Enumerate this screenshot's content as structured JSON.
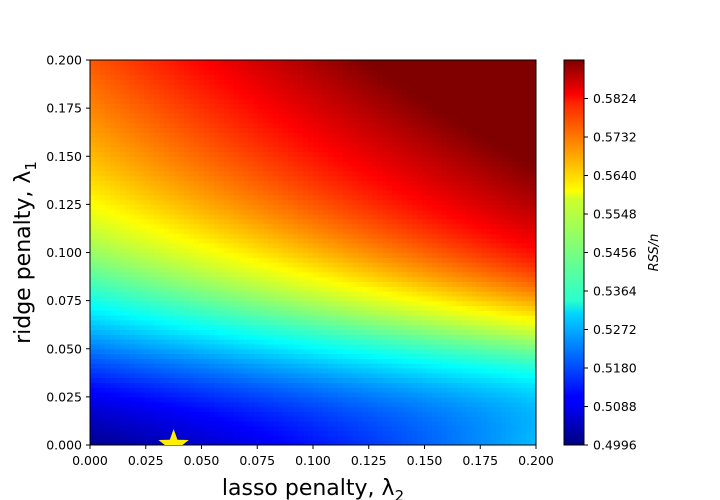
{
  "chart_data": {
    "type": "heatmap",
    "title": "",
    "xlabel": "lasso penalty, λ",
    "xlabel_sub": "2",
    "ylabel": "ridge penalty, λ",
    "ylabel_sub": "1",
    "xlim": [
      0.0,
      0.2
    ],
    "ylim": [
      0.0,
      0.2
    ],
    "x_ticks": [
      0.0,
      0.025,
      0.05,
      0.075,
      0.1,
      0.125,
      0.15,
      0.175,
      0.2
    ],
    "x_tick_labels": [
      "0.000",
      "0.025",
      "0.050",
      "0.075",
      "0.100",
      "0.125",
      "0.150",
      "0.175",
      "0.200"
    ],
    "y_ticks": [
      0.0,
      0.025,
      0.05,
      0.075,
      0.1,
      0.125,
      0.15,
      0.175,
      0.2
    ],
    "y_tick_labels": [
      "0.000",
      "0.025",
      "0.050",
      "0.075",
      "0.100",
      "0.125",
      "0.150",
      "0.175",
      "0.200"
    ],
    "colormap": "jet",
    "colorbar": {
      "label": "RSS/n",
      "vmin": 0.4996,
      "vmax": 0.5916,
      "ticks": [
        0.4996,
        0.5088,
        0.518,
        0.5272,
        0.5364,
        0.5456,
        0.5548,
        0.564,
        0.5732,
        0.5824
      ],
      "tick_labels": [
        "0.4996",
        "0.5088",
        "0.5180",
        "0.5272",
        "0.5364",
        "0.5456",
        "0.5548",
        "0.5640",
        "0.5732",
        "0.5824"
      ]
    },
    "grid": false,
    "optimum_marker": {
      "shape": "star",
      "color": "#ffee00",
      "x": 0.0375,
      "y": 0.0
    }
  }
}
